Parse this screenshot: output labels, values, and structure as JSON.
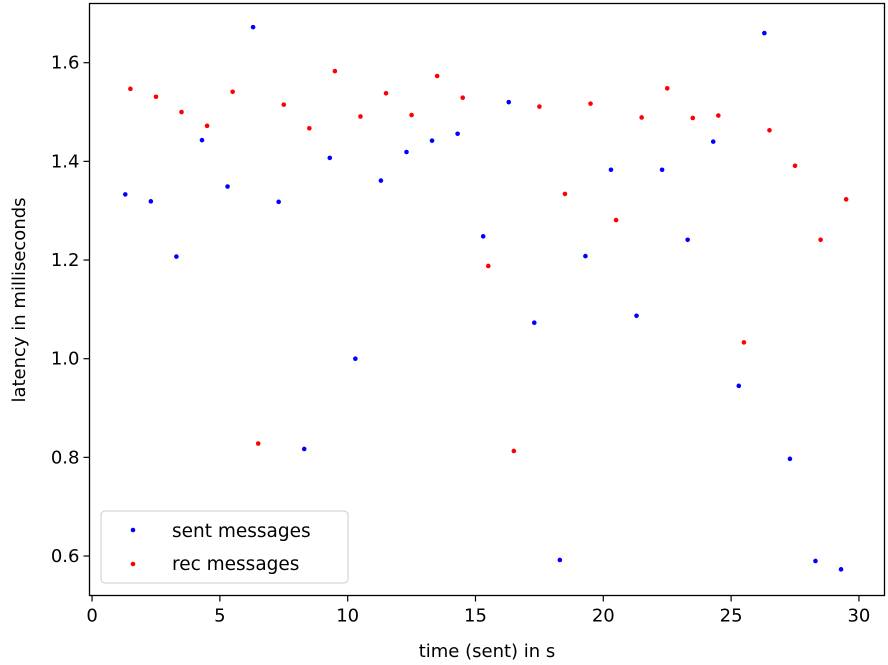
{
  "chart_data": {
    "type": "scatter",
    "title": "",
    "xlabel": "time (sent) in s",
    "ylabel": "latency in milliseconds",
    "xlim": [
      -0.1,
      31.0
    ],
    "ylim": [
      0.52,
      1.72
    ],
    "xticks": [
      0,
      5,
      10,
      15,
      20,
      25,
      30
    ],
    "yticks": [
      0.6,
      0.8,
      1.0,
      1.2,
      1.4,
      1.6
    ],
    "ytick_labels": [
      "0.6",
      "0.8",
      "1.0",
      "1.2",
      "1.4",
      "1.6"
    ],
    "grid": false,
    "legend_position": "lower-left",
    "series": [
      {
        "name": "sent messages",
        "color": "#0000ff",
        "x": [
          1.3,
          2.3,
          3.3,
          4.3,
          5.3,
          6.3,
          7.3,
          8.3,
          9.3,
          10.3,
          11.3,
          12.3,
          13.3,
          14.3,
          15.3,
          16.3,
          17.3,
          18.3,
          19.3,
          20.3,
          21.3,
          22.3,
          23.3,
          24.3,
          25.3,
          26.3,
          27.3,
          28.3,
          29.3
        ],
        "y": [
          1.333,
          1.319,
          1.207,
          1.443,
          1.349,
          1.672,
          1.318,
          0.817,
          1.407,
          1.0,
          1.361,
          1.419,
          1.442,
          1.456,
          1.248,
          1.52,
          1.073,
          0.592,
          1.208,
          1.383,
          1.087,
          1.383,
          1.241,
          1.44,
          0.945,
          1.66,
          0.797,
          0.59,
          0.573
        ]
      },
      {
        "name": "rec messages",
        "color": "#ff0000",
        "x": [
          1.5,
          2.5,
          3.5,
          4.5,
          5.5,
          6.5,
          7.5,
          8.5,
          9.5,
          10.5,
          11.5,
          12.5,
          13.5,
          14.5,
          15.5,
          16.5,
          17.5,
          18.5,
          19.5,
          20.5,
          21.5,
          22.5,
          23.5,
          24.5,
          25.5,
          26.5,
          27.5,
          28.5,
          29.5
        ],
        "y": [
          1.547,
          1.531,
          1.5,
          1.472,
          1.541,
          0.828,
          1.515,
          1.467,
          1.583,
          1.491,
          1.538,
          1.494,
          1.573,
          1.529,
          1.188,
          0.813,
          1.511,
          1.334,
          1.517,
          1.281,
          1.489,
          1.548,
          1.488,
          1.493,
          1.033,
          1.463,
          1.391,
          1.241,
          1.323
        ]
      }
    ]
  }
}
